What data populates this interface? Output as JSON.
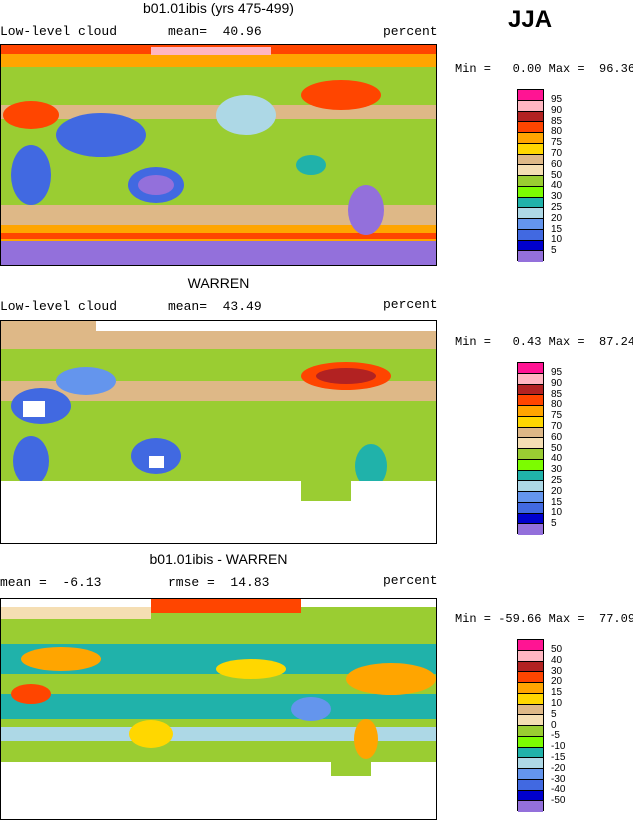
{
  "season": "JJA",
  "panels": [
    {
      "title": "b01.01ibis (yrs 475-499)",
      "left_label": "Low-level cloud",
      "mid_label": "mean=  40.96",
      "right_label": "percent",
      "minmax": "Min =   0.00 Max =  96.36",
      "colorbar_labels": [
        "95",
        "90",
        "85",
        "80",
        "75",
        "70",
        "60",
        "50",
        "40",
        "30",
        "25",
        "20",
        "15",
        "10",
        "5"
      ]
    },
    {
      "title": "WARREN",
      "left_label": "Low-level cloud",
      "mid_label": "mean=  43.49",
      "right_label": "percent",
      "minmax": "Min =   0.43 Max =  87.24",
      "colorbar_labels": [
        "95",
        "90",
        "85",
        "80",
        "75",
        "70",
        "60",
        "50",
        "40",
        "30",
        "25",
        "20",
        "15",
        "10",
        "5"
      ]
    },
    {
      "title": "b01.01ibis - WARREN",
      "left_label": "mean =  -6.13",
      "mid_label": "rmse =  14.83",
      "right_label": "percent",
      "minmax": "Min = -59.66 Max =  77.09",
      "colorbar_labels": [
        "50",
        "40",
        "30",
        "20",
        "15",
        "10",
        "5",
        "0",
        "-5",
        "-10",
        "-15",
        "-20",
        "-30",
        "-40",
        "-50"
      ]
    }
  ],
  "palette": [
    "#ff1493",
    "#ffb6c1",
    "#b22222",
    "#ff4500",
    "#ffa500",
    "#ffd700",
    "#deb887",
    "#f5deb3",
    "#9acd32",
    "#7cfc00",
    "#20b2aa",
    "#add8e6",
    "#6495ed",
    "#4169e1",
    "#0000cd",
    "#9370db"
  ]
}
